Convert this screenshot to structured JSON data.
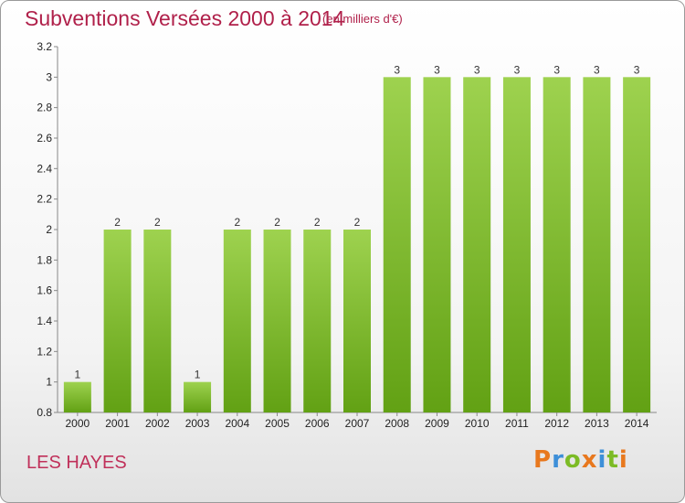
{
  "header": {
    "title": "Subventions Versées 2000 à 2014",
    "subtitle": "(en milliers d'€)"
  },
  "footer": {
    "location": "LES HAYES",
    "brand": "Proxiti"
  },
  "colors": {
    "title": "#b0204a",
    "bar_top": "#9ed24f",
    "bar_bottom": "#62a114",
    "brand_letters": [
      "#e8781e",
      "#3d8fd8",
      "#7cbb25",
      "#e8781e",
      "#3d8fd8",
      "#7cbb25",
      "#e8781e"
    ]
  },
  "chart_data": {
    "type": "bar",
    "title": "Subventions Versées 2000 à 2014",
    "categories": [
      "2000",
      "2001",
      "2002",
      "2003",
      "2004",
      "2005",
      "2006",
      "2007",
      "2008",
      "2009",
      "2010",
      "2011",
      "2012",
      "2013",
      "2014"
    ],
    "values": [
      1,
      2,
      2,
      1,
      2,
      2,
      2,
      2,
      3,
      3,
      3,
      3,
      3,
      3,
      3
    ],
    "data_labels": [
      "1",
      "2",
      "2",
      "1",
      "2",
      "2",
      "2",
      "2",
      "3",
      "3",
      "3",
      "3",
      "3",
      "3",
      "3"
    ],
    "xlabel": "",
    "ylabel": "",
    "ylim": [
      0.8,
      3.2
    ],
    "yticks": [
      0.8,
      1,
      1.2,
      1.4,
      1.6,
      1.8,
      2,
      2.2,
      2.4,
      2.6,
      2.8,
      3,
      3.2
    ],
    "ytick_labels": [
      "0.8",
      "1",
      "1.2",
      "1.4",
      "1.6",
      "1.8",
      "2",
      "2.2",
      "2.4",
      "2.6",
      "2.8",
      "3",
      "3.2"
    ],
    "grid": false,
    "legend": "none"
  }
}
